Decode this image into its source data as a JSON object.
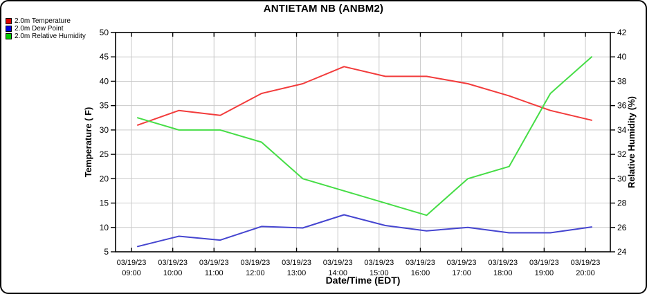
{
  "chart_data": {
    "type": "line",
    "title": "ANTIETAM NB (ANBM2)",
    "x_axis_label": "Date/Time (EDT)",
    "categories": [
      {
        "date": "03/19/23",
        "time": "09:00"
      },
      {
        "date": "03/19/23",
        "time": "10:00"
      },
      {
        "date": "03/19/23",
        "time": "11:00"
      },
      {
        "date": "03/19/23",
        "time": "12:00"
      },
      {
        "date": "03/19/23",
        "time": "13:00"
      },
      {
        "date": "03/19/23",
        "time": "14:00"
      },
      {
        "date": "03/19/23",
        "time": "15:00"
      },
      {
        "date": "03/19/23",
        "time": "16:00"
      },
      {
        "date": "03/19/23",
        "time": "17:00"
      },
      {
        "date": "03/19/23",
        "time": "18:00"
      },
      {
        "date": "03/19/23",
        "time": "19:00"
      },
      {
        "date": "03/19/23",
        "time": "20:00"
      }
    ],
    "y_left": {
      "label": "Temperature ( F)",
      "min": 5,
      "max": 50,
      "tick_step": 5,
      "ticks": [
        50,
        45,
        40,
        35,
        30,
        25,
        20,
        15,
        10,
        5
      ]
    },
    "y_right": {
      "label": "Relative Humidity (%)",
      "min": 24,
      "max": 42,
      "tick_step": 2,
      "ticks": [
        42,
        40,
        38,
        36,
        34,
        32,
        30,
        28,
        26,
        24
      ]
    },
    "series": [
      {
        "name": "2.0m Temperature",
        "axis": "left",
        "line_color": "#f23b3b",
        "swatch_color": "#dd0000",
        "values": [
          31,
          34,
          33,
          37.5,
          39.5,
          43,
          41,
          41,
          39.5,
          37,
          34,
          32
        ]
      },
      {
        "name": "2.0m Dew Point",
        "axis": "left",
        "line_color": "#4545d0",
        "swatch_color": "#0000dd",
        "values": [
          6.1,
          8.2,
          7.4,
          10.2,
          9.9,
          12.6,
          10.4,
          9.3,
          10,
          8.9,
          8.9,
          10.1
        ]
      },
      {
        "name": "2.0m Relative Humidity",
        "axis": "right",
        "line_color": "#46dd46",
        "swatch_color": "#00cc00",
        "values": [
          35,
          34,
          34,
          33,
          30,
          29,
          28,
          27,
          30,
          31,
          37,
          40
        ]
      }
    ],
    "grid": true,
    "legend_position": "top-left",
    "colors": {
      "grid_line": "#c9c9c9",
      "axis": "#000000",
      "background": "#ffffff",
      "text": "#000000"
    }
  }
}
